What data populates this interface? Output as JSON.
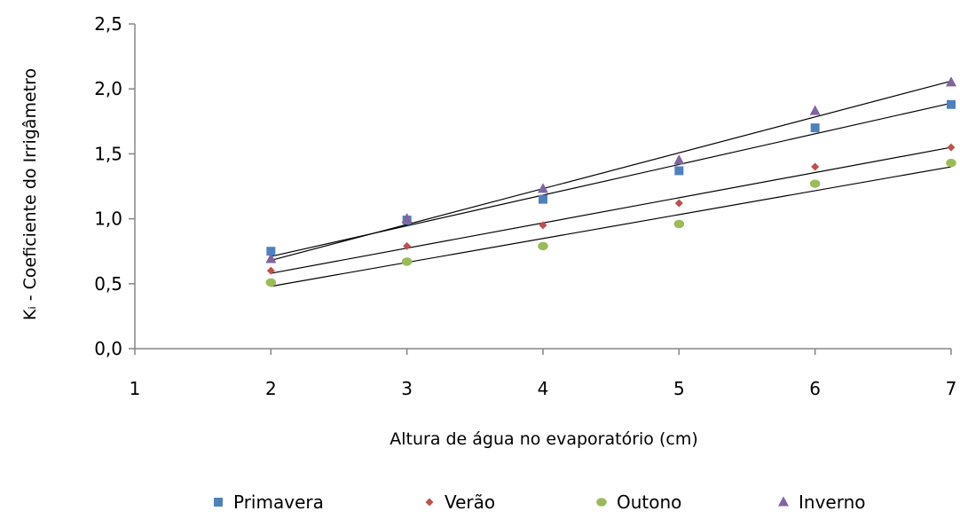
{
  "chart_data": {
    "type": "scatter",
    "xlabel": "Altura de água no evaporatório (cm)",
    "ylabel": "Kᵢ - Coeficiente do Irrigâmetro",
    "xlim": [
      1,
      7
    ],
    "ylim": [
      0,
      2.5
    ],
    "x_ticks": [
      "1",
      "2",
      "3",
      "4",
      "5",
      "6",
      "7"
    ],
    "y_ticks": [
      "0,0",
      "0,5",
      "1,0",
      "1,5",
      "2,0",
      "2,5"
    ],
    "grid": false,
    "legend_position": "bottom",
    "series": [
      {
        "name": "Primavera",
        "marker": "square",
        "color": "#4f81bd",
        "x": [
          2,
          3,
          4,
          5,
          6,
          7
        ],
        "y": [
          0.75,
          0.99,
          1.15,
          1.37,
          1.7,
          1.88
        ],
        "trendline": [
          [
            2,
            0.71
          ],
          [
            7,
            1.89
          ]
        ]
      },
      {
        "name": "Verão",
        "marker": "diamond",
        "color": "#c0504d",
        "x": [
          2,
          3,
          4,
          5,
          6,
          7
        ],
        "y": [
          0.6,
          0.79,
          0.95,
          1.12,
          1.4,
          1.55
        ],
        "trendline": [
          [
            2,
            0.58
          ],
          [
            7,
            1.55
          ]
        ]
      },
      {
        "name": "Outono",
        "marker": "circle",
        "color": "#9bbb59",
        "x": [
          2,
          3,
          4,
          5,
          6,
          7
        ],
        "y": [
          0.51,
          0.67,
          0.79,
          0.96,
          1.27,
          1.43
        ],
        "trendline": [
          [
            2,
            0.48
          ],
          [
            7,
            1.4
          ]
        ]
      },
      {
        "name": "Inverno",
        "marker": "triangle",
        "color": "#8064a2",
        "x": [
          2,
          3,
          4,
          5,
          6,
          7
        ],
        "y": [
          0.69,
          1.0,
          1.23,
          1.45,
          1.83,
          2.05
        ],
        "trendline": [
          [
            2,
            0.68
          ],
          [
            7,
            2.06
          ]
        ]
      }
    ]
  }
}
